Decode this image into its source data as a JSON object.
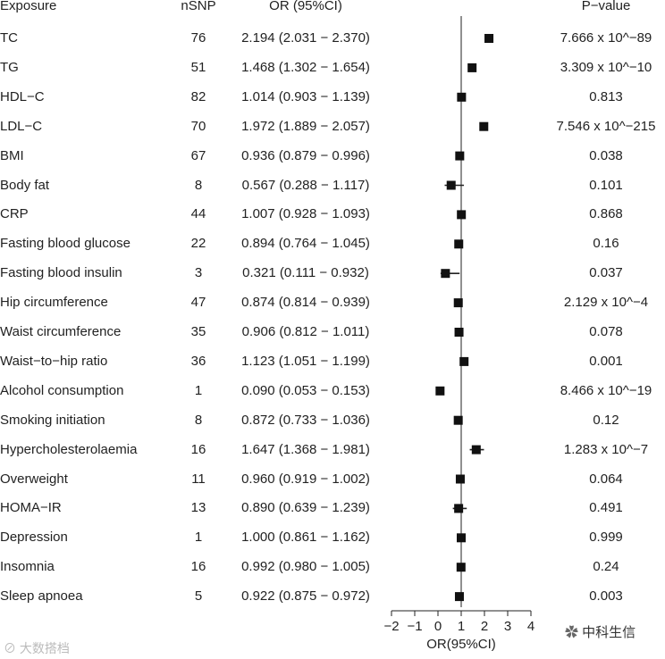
{
  "headers": {
    "exposure": "Exposure",
    "nsnp": "nSNP",
    "or": "OR (95%CI)",
    "pvalue": "P−value"
  },
  "rows": [
    {
      "exposure": "TC",
      "nsnp": "76",
      "or_text": "2.194 (2.031 − 2.370)",
      "p": "7.666 x 10^−89"
    },
    {
      "exposure": "TG",
      "nsnp": "51",
      "or_text": "1.468 (1.302 − 1.654)",
      "p": "3.309 x 10^−10"
    },
    {
      "exposure": "HDL−C",
      "nsnp": "82",
      "or_text": "1.014 (0.903 − 1.139)",
      "p": "0.813"
    },
    {
      "exposure": "LDL−C",
      "nsnp": "70",
      "or_text": "1.972 (1.889 − 2.057)",
      "p": "7.546 x 10^−215"
    },
    {
      "exposure": "BMI",
      "nsnp": "67",
      "or_text": "0.936 (0.879 − 0.996)",
      "p": "0.038"
    },
    {
      "exposure": "Body fat",
      "nsnp": "8",
      "or_text": "0.567 (0.288 − 1.117)",
      "p": "0.101"
    },
    {
      "exposure": "CRP",
      "nsnp": "44",
      "or_text": "1.007 (0.928 − 1.093)",
      "p": "0.868"
    },
    {
      "exposure": "Fasting blood glucose",
      "nsnp": "22",
      "or_text": "0.894 (0.764 − 1.045)",
      "p": "0.16"
    },
    {
      "exposure": "Fasting blood insulin",
      "nsnp": "3",
      "or_text": "0.321 (0.111 − 0.932)",
      "p": "0.037"
    },
    {
      "exposure": "Hip circumference",
      "nsnp": "47",
      "or_text": "0.874 (0.814 − 0.939)",
      "p": "2.129 x 10^−4"
    },
    {
      "exposure": "Waist circumference",
      "nsnp": "35",
      "or_text": "0.906 (0.812 − 1.011)",
      "p": "0.078"
    },
    {
      "exposure": "Waist−to−hip ratio",
      "nsnp": "36",
      "or_text": "1.123 (1.051 − 1.199)",
      "p": "0.001"
    },
    {
      "exposure": "Alcohol consumption",
      "nsnp": "1",
      "or_text": "0.090 (0.053 − 0.153)",
      "p": "8.466 x 10^−19"
    },
    {
      "exposure": "Smoking initiation",
      "nsnp": "8",
      "or_text": "0.872 (0.733 − 1.036)",
      "p": "0.12"
    },
    {
      "exposure": "Hypercholesterolaemia",
      "nsnp": "16",
      "or_text": "1.647 (1.368 − 1.981)",
      "p": "1.283 x 10^−7"
    },
    {
      "exposure": "Overweight",
      "nsnp": "11",
      "or_text": "0.960 (0.919 − 1.002)",
      "p": "0.064"
    },
    {
      "exposure": "HOMA−IR",
      "nsnp": "13",
      "or_text": "0.890 (0.639 − 1.239)",
      "p": "0.491"
    },
    {
      "exposure": "Depression",
      "nsnp": "1",
      "or_text": "1.000 (0.861 − 1.162)",
      "p": "0.999"
    },
    {
      "exposure": "Insomnia",
      "nsnp": "16",
      "or_text": "0.992 (0.980 − 1.005)",
      "p": "0.24"
    },
    {
      "exposure": "Sleep apnoea",
      "nsnp": "5",
      "or_text": "0.922 (0.875 − 0.972)",
      "p": "0.003"
    }
  ],
  "chart_data": {
    "type": "scatter",
    "subtype": "forest",
    "xlabel": "OR(95%CI)",
    "xlim": [
      -2,
      4
    ],
    "xticks": [
      "−2",
      "−1",
      "0",
      "1",
      "2",
      "3",
      "4"
    ],
    "xtick_values": [
      -2,
      -1,
      0,
      1,
      2,
      3,
      4
    ],
    "reference_line": 1,
    "points": [
      {
        "label": "TC",
        "or": 2.194,
        "lo": 2.031,
        "hi": 2.37
      },
      {
        "label": "TG",
        "or": 1.468,
        "lo": 1.302,
        "hi": 1.654
      },
      {
        "label": "HDL−C",
        "or": 1.014,
        "lo": 0.903,
        "hi": 1.139
      },
      {
        "label": "LDL−C",
        "or": 1.972,
        "lo": 1.889,
        "hi": 2.057
      },
      {
        "label": "BMI",
        "or": 0.936,
        "lo": 0.879,
        "hi": 0.996
      },
      {
        "label": "Body fat",
        "or": 0.567,
        "lo": 0.288,
        "hi": 1.117
      },
      {
        "label": "CRP",
        "or": 1.007,
        "lo": 0.928,
        "hi": 1.093
      },
      {
        "label": "Fasting blood glucose",
        "or": 0.894,
        "lo": 0.764,
        "hi": 1.045
      },
      {
        "label": "Fasting blood insulin",
        "or": 0.321,
        "lo": 0.111,
        "hi": 0.932
      },
      {
        "label": "Hip circumference",
        "or": 0.874,
        "lo": 0.814,
        "hi": 0.939
      },
      {
        "label": "Waist circumference",
        "or": 0.906,
        "lo": 0.812,
        "hi": 1.011
      },
      {
        "label": "Waist−to−hip ratio",
        "or": 1.123,
        "lo": 1.051,
        "hi": 1.199
      },
      {
        "label": "Alcohol consumption",
        "or": 0.09,
        "lo": 0.053,
        "hi": 0.153
      },
      {
        "label": "Smoking initiation",
        "or": 0.872,
        "lo": 0.733,
        "hi": 1.036
      },
      {
        "label": "Hypercholesterolaemia",
        "or": 1.647,
        "lo": 1.368,
        "hi": 1.981
      },
      {
        "label": "Overweight",
        "or": 0.96,
        "lo": 0.919,
        "hi": 1.002
      },
      {
        "label": "HOMA−IR",
        "or": 0.89,
        "lo": 0.639,
        "hi": 1.239
      },
      {
        "label": "Depression",
        "or": 1.0,
        "lo": 0.861,
        "hi": 1.162
      },
      {
        "label": "Insomnia",
        "or": 0.992,
        "lo": 0.98,
        "hi": 1.005
      },
      {
        "label": "Sleep apnoea",
        "or": 0.922,
        "lo": 0.875,
        "hi": 0.972
      }
    ]
  },
  "watermarks": {
    "left": "大数搭档",
    "right": "中科生信"
  },
  "colors": {
    "marker": "#111111",
    "axis": "#222222",
    "text": "#222222"
  }
}
